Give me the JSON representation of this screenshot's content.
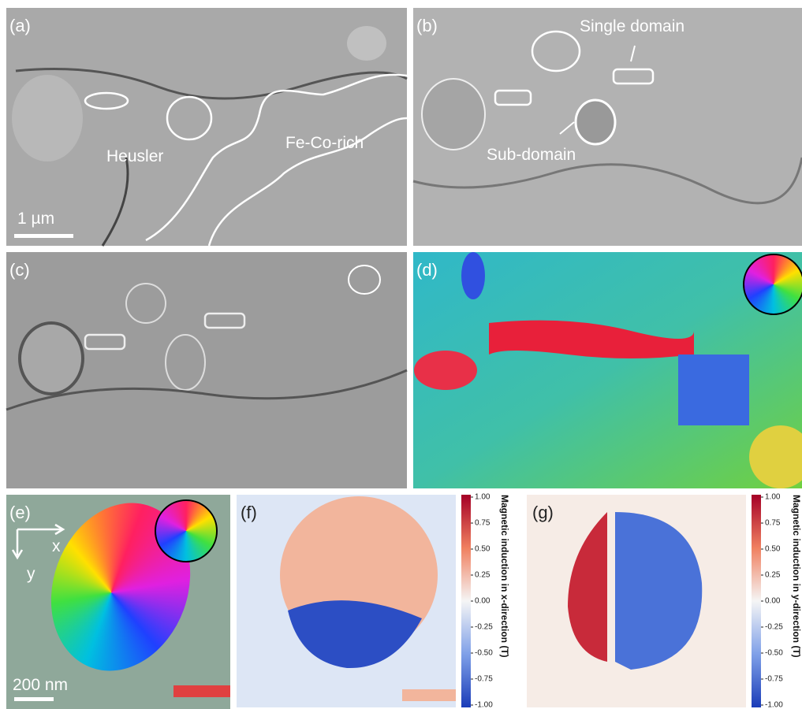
{
  "panels": {
    "a": {
      "label": "(a)",
      "annotations": [
        "Heusler",
        "Fe-Co-rich"
      ],
      "scale_bar": "1 µm"
    },
    "b": {
      "label": "(b)",
      "annotations": [
        "Single domain",
        "Sub-domain"
      ]
    },
    "c": {
      "label": "(c)"
    },
    "d": {
      "label": "(d)"
    },
    "e": {
      "label": "(e)",
      "axes": [
        "x",
        "y"
      ],
      "scale_bar": "200 nm"
    },
    "f": {
      "label": "(f)"
    },
    "g": {
      "label": "(g)"
    }
  },
  "colorbars": [
    {
      "title": "Magnetic induction in x-direction (T)",
      "ticks": [
        {
          "value": 1,
          "label": "1.00"
        },
        0.75,
        {
          "value": 0.5,
          "label": "0.50"
        },
        0.25,
        {
          "value": 0,
          "label": "0.00"
        },
        -0.25,
        {
          "value": -0.5,
          "label": "-0.50"
        },
        -0.75,
        {
          "value": -1,
          "label": "-1.00"
        }
      ]
    },
    {
      "title": "Magnetic induction in y-direction (T)",
      "ticks": [
        {
          "value": 1,
          "label": "1.00"
        },
        0.75,
        {
          "value": 0.5,
          "label": "0.50"
        },
        0.25,
        {
          "value": 0,
          "label": "0.00"
        },
        -0.25,
        {
          "value": -0.5,
          "label": "-0.50"
        },
        -0.75,
        {
          "value": -1,
          "label": "-1.00"
        }
      ]
    }
  ]
}
